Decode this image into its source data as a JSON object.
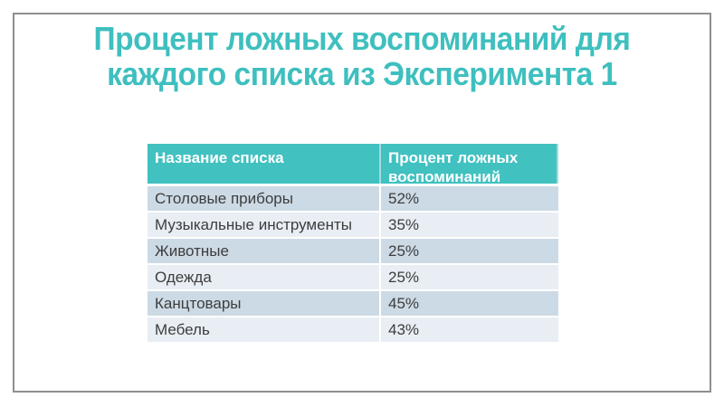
{
  "slide": {
    "title_line1": "Процент ложных воспоминаний для",
    "title_line2": "каждого списка из Эксперимента 1"
  },
  "table": {
    "columns": [
      "Название списка",
      "Процент ложных воспоминаний"
    ],
    "rows": [
      {
        "name": "Столовые приборы",
        "value": "52%"
      },
      {
        "name": "Музыкальные инструменты",
        "value": "35%"
      },
      {
        "name": "Животные",
        "value": "25%"
      },
      {
        "name": "Одежда",
        "value": "25%"
      },
      {
        "name": "Канцтовары",
        "value": "45%"
      },
      {
        "name": "Мебель",
        "value": "43%"
      }
    ]
  },
  "colors": {
    "title_teal": "#3fbfbf",
    "header_teal": "#41c1c0",
    "header_divider": "#a5dbdb",
    "band_dark": "#ccdae5",
    "band_light": "#e8eef4",
    "body_text": "#3d3d3d",
    "slide_border": "#8f8f8f"
  }
}
